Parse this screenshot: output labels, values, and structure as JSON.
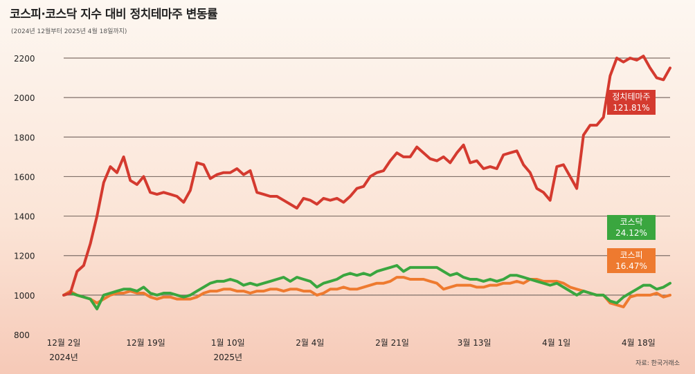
{
  "title": "코스피·코스닥 지수 대비 정치테마주 변동률",
  "subtitle": "(2024년 12월부터 2025년 4월 18일까지)",
  "source": "자료: 한국거래소",
  "colors": {
    "theme": "#d43a2f",
    "kosdaq": "#3aa63f",
    "kospi": "#ee7a2f",
    "grid": "#7f6f68"
  },
  "chart_data": {
    "type": "line",
    "ylim": [
      800,
      2200
    ],
    "yticks": [
      800,
      1000,
      1200,
      1400,
      1600,
      1800,
      2000,
      2200
    ],
    "xlim": [
      0,
      96
    ],
    "xticks": [
      {
        "x": 0,
        "label": "12월 2일",
        "sub": "2024년"
      },
      {
        "x": 13,
        "label": "12월 19일",
        "sub": ""
      },
      {
        "x": 26,
        "label": "1월 10일",
        "sub": "2025년"
      },
      {
        "x": 39,
        "label": "2월 4일",
        "sub": ""
      },
      {
        "x": 52,
        "label": "2월 21일",
        "sub": ""
      },
      {
        "x": 65,
        "label": "3월 13일",
        "sub": ""
      },
      {
        "x": 78,
        "label": "4월 1일",
        "sub": ""
      },
      {
        "x": 91,
        "label": "4월 18일",
        "sub": ""
      }
    ],
    "series": [
      {
        "name": "정치테마주",
        "change": "121.81%",
        "color": "#d43a2f",
        "values": [
          1000,
          1010,
          1120,
          1150,
          1260,
          1400,
          1570,
          1650,
          1620,
          1700,
          1580,
          1560,
          1600,
          1520,
          1510,
          1520,
          1510,
          1500,
          1470,
          1530,
          1670,
          1660,
          1590,
          1610,
          1620,
          1620,
          1640,
          1610,
          1630,
          1520,
          1510,
          1500,
          1500,
          1480,
          1460,
          1440,
          1490,
          1480,
          1460,
          1490,
          1480,
          1490,
          1470,
          1500,
          1540,
          1550,
          1600,
          1620,
          1630,
          1680,
          1720,
          1700,
          1700,
          1750,
          1720,
          1690,
          1680,
          1700,
          1670,
          1720,
          1760,
          1670,
          1680,
          1640,
          1650,
          1640,
          1710,
          1720,
          1730,
          1660,
          1620,
          1540,
          1520,
          1480,
          1650,
          1660,
          1600,
          1540,
          1810,
          1860,
          1860,
          1900,
          2110,
          2200,
          2180,
          2200,
          2190,
          2210,
          2150,
          2100,
          2090,
          2150
        ]
      },
      {
        "name": "코스닥",
        "change": "24.12%",
        "color": "#3aa63f",
        "values": [
          1000,
          1010,
          1000,
          990,
          980,
          930,
          1000,
          1010,
          1020,
          1030,
          1030,
          1020,
          1040,
          1010,
          1000,
          1010,
          1010,
          1000,
          990,
          1000,
          1020,
          1040,
          1060,
          1070,
          1070,
          1080,
          1070,
          1050,
          1060,
          1050,
          1060,
          1070,
          1080,
          1090,
          1070,
          1090,
          1080,
          1070,
          1040,
          1060,
          1070,
          1080,
          1100,
          1110,
          1100,
          1110,
          1100,
          1120,
          1130,
          1140,
          1150,
          1120,
          1140,
          1140,
          1140,
          1140,
          1140,
          1120,
          1100,
          1110,
          1090,
          1080,
          1080,
          1070,
          1080,
          1070,
          1080,
          1100,
          1100,
          1090,
          1080,
          1070,
          1060,
          1050,
          1060,
          1040,
          1020,
          1000,
          1020,
          1010,
          1000,
          1000,
          970,
          960,
          990,
          1010,
          1030,
          1050,
          1050,
          1030,
          1040,
          1060
        ]
      },
      {
        "name": "코스피",
        "change": "16.47%",
        "color": "#ee7a2f",
        "values": [
          1000,
          1020,
          1000,
          990,
          980,
          960,
          980,
          1000,
          1010,
          1010,
          1020,
          1010,
          1010,
          990,
          980,
          990,
          990,
          980,
          980,
          980,
          990,
          1010,
          1020,
          1020,
          1030,
          1030,
          1020,
          1020,
          1010,
          1020,
          1020,
          1030,
          1030,
          1020,
          1030,
          1030,
          1020,
          1020,
          1000,
          1010,
          1030,
          1030,
          1040,
          1030,
          1030,
          1040,
          1050,
          1060,
          1060,
          1070,
          1090,
          1090,
          1080,
          1080,
          1080,
          1070,
          1060,
          1030,
          1040,
          1050,
          1050,
          1050,
          1040,
          1040,
          1050,
          1050,
          1060,
          1060,
          1070,
          1060,
          1080,
          1080,
          1070,
          1070,
          1070,
          1060,
          1040,
          1030,
          1020,
          1010,
          1000,
          1000,
          960,
          950,
          940,
          990,
          1000,
          1000,
          1000,
          1010,
          990,
          1000
        ]
      }
    ]
  }
}
